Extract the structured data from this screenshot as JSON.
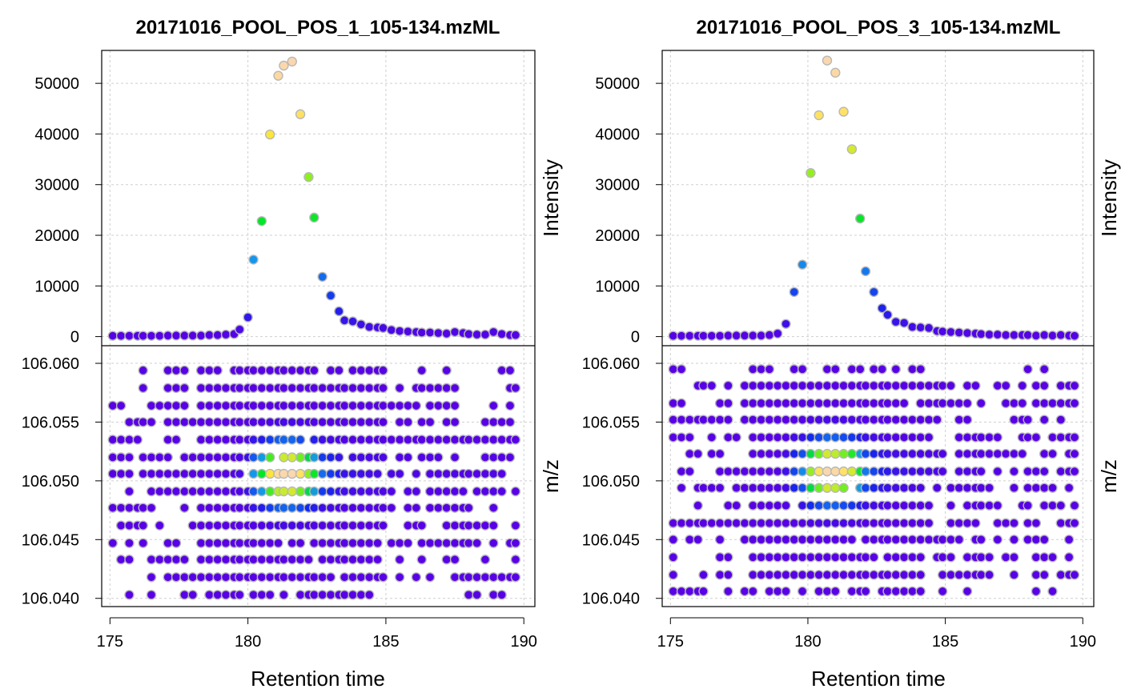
{
  "chart_data": [
    {
      "type": "scatter",
      "title": "20171016_POOL_POS_1_105-134.mzML",
      "xlabel": "Retention time",
      "xlim": [
        174.7,
        190.4
      ],
      "x_ticks": [
        "175",
        "180",
        "185",
        "190"
      ],
      "grid": true,
      "grid_style": "dotted",
      "panels": {
        "intensity": {
          "ylabel": "Intensity",
          "ylim": [
            -1800,
            56500
          ],
          "y_ticks": [
            "0",
            "10000",
            "20000",
            "30000",
            "40000",
            "50000"
          ],
          "points": [
            [
              175.1,
              150
            ],
            [
              175.4,
              150
            ],
            [
              175.7,
              150
            ],
            [
              176.0,
              150
            ],
            [
              176.2,
              150
            ],
            [
              176.5,
              150
            ],
            [
              176.8,
              150
            ],
            [
              177.1,
              200
            ],
            [
              177.4,
              200
            ],
            [
              177.7,
              200
            ],
            [
              178.0,
              200
            ],
            [
              178.3,
              200
            ],
            [
              178.6,
              300
            ],
            [
              178.9,
              300
            ],
            [
              179.2,
              400
            ],
            [
              179.5,
              500
            ],
            [
              179.7,
              1400
            ],
            [
              180.0,
              3800
            ],
            [
              180.2,
              15200
            ],
            [
              180.5,
              22800
            ],
            [
              180.8,
              39900
            ],
            [
              181.1,
              51500
            ],
            [
              181.3,
              53500
            ],
            [
              181.6,
              54300
            ],
            [
              181.9,
              43900
            ],
            [
              182.2,
              31500
            ],
            [
              182.4,
              23500
            ],
            [
              182.7,
              11800
            ],
            [
              183.0,
              8100
            ],
            [
              183.3,
              5000
            ],
            [
              183.5,
              3200
            ],
            [
              183.8,
              3000
            ],
            [
              184.1,
              2400
            ],
            [
              184.4,
              1900
            ],
            [
              184.7,
              1800
            ],
            [
              184.9,
              1700
            ],
            [
              185.2,
              1300
            ],
            [
              185.5,
              1100
            ],
            [
              185.8,
              1000
            ],
            [
              186.1,
              900
            ],
            [
              186.3,
              800
            ],
            [
              186.6,
              800
            ],
            [
              186.9,
              700
            ],
            [
              187.2,
              600
            ],
            [
              187.5,
              900
            ],
            [
              187.8,
              700
            ],
            [
              188.0,
              500
            ],
            [
              188.3,
              400
            ],
            [
              188.6,
              400
            ],
            [
              188.9,
              900
            ],
            [
              189.2,
              500
            ],
            [
              189.5,
              300
            ],
            [
              189.7,
              300
            ]
          ]
        },
        "mz": {
          "ylabel": "m/z",
          "ylim": [
            106.0393,
            106.0615
          ],
          "y_ticks": [
            "106.040",
            "106.045",
            "106.050",
            "106.055",
            "106.060"
          ],
          "mz_levels": [
            106.0403,
            106.0418,
            106.0433,
            106.0447,
            106.0462,
            106.0477,
            106.0491,
            106.0506,
            106.052,
            106.0535,
            106.055,
            106.0564,
            106.0579,
            106.0594
          ],
          "peak_rt": 181.5,
          "peak_mz": 106.0506
        }
      }
    },
    {
      "type": "scatter",
      "title": "20171016_POOL_POS_3_105-134.mzML",
      "xlabel": "Retention time",
      "xlim": [
        174.7,
        190.4
      ],
      "x_ticks": [
        "175",
        "180",
        "185",
        "190"
      ],
      "grid": true,
      "grid_style": "dotted",
      "panels": {
        "intensity": {
          "ylabel": "Intensity",
          "ylim": [
            -1800,
            56500
          ],
          "y_ticks": [
            "0",
            "10000",
            "20000",
            "30000",
            "40000",
            "50000"
          ],
          "points": [
            [
              175.1,
              150
            ],
            [
              175.4,
              150
            ],
            [
              175.7,
              150
            ],
            [
              176.0,
              150
            ],
            [
              176.2,
              150
            ],
            [
              176.5,
              150
            ],
            [
              176.8,
              150
            ],
            [
              177.1,
              200
            ],
            [
              177.4,
              200
            ],
            [
              177.7,
              200
            ],
            [
              178.0,
              200
            ],
            [
              178.3,
              200
            ],
            [
              178.6,
              300
            ],
            [
              178.9,
              600
            ],
            [
              179.2,
              2500
            ],
            [
              179.5,
              8800
            ],
            [
              179.8,
              14200
            ],
            [
              180.1,
              32300
            ],
            [
              180.4,
              43700
            ],
            [
              180.7,
              54500
            ],
            [
              181.0,
              52100
            ],
            [
              181.3,
              44400
            ],
            [
              181.6,
              37000
            ],
            [
              181.9,
              23300
            ],
            [
              182.1,
              12900
            ],
            [
              182.4,
              8800
            ],
            [
              182.7,
              5600
            ],
            [
              182.9,
              4300
            ],
            [
              183.2,
              2900
            ],
            [
              183.5,
              2700
            ],
            [
              183.8,
              1900
            ],
            [
              184.1,
              1800
            ],
            [
              184.4,
              1700
            ],
            [
              184.7,
              1100
            ],
            [
              184.9,
              1000
            ],
            [
              185.2,
              900
            ],
            [
              185.5,
              800
            ],
            [
              185.8,
              700
            ],
            [
              186.1,
              600
            ],
            [
              186.3,
              500
            ],
            [
              186.6,
              400
            ],
            [
              186.9,
              400
            ],
            [
              187.2,
              300
            ],
            [
              187.5,
              300
            ],
            [
              187.8,
              300
            ],
            [
              188.0,
              300
            ],
            [
              188.3,
              200
            ],
            [
              188.6,
              300
            ],
            [
              188.9,
              200
            ],
            [
              189.2,
              300
            ],
            [
              189.5,
              200
            ],
            [
              189.7,
              150
            ]
          ]
        },
        "mz": {
          "ylabel": "m/z",
          "ylim": [
            106.0393,
            106.0615
          ],
          "y_ticks": [
            "106.040",
            "106.045",
            "106.050",
            "106.055",
            "106.060"
          ],
          "mz_levels": [
            106.0406,
            106.042,
            106.0435,
            106.045,
            106.0464,
            106.0479,
            106.0494,
            106.0508,
            106.0523,
            106.0537,
            106.0552,
            106.0566,
            106.0581,
            106.0595
          ],
          "peak_rt": 181.0,
          "peak_mz": 106.0508
        }
      }
    }
  ]
}
